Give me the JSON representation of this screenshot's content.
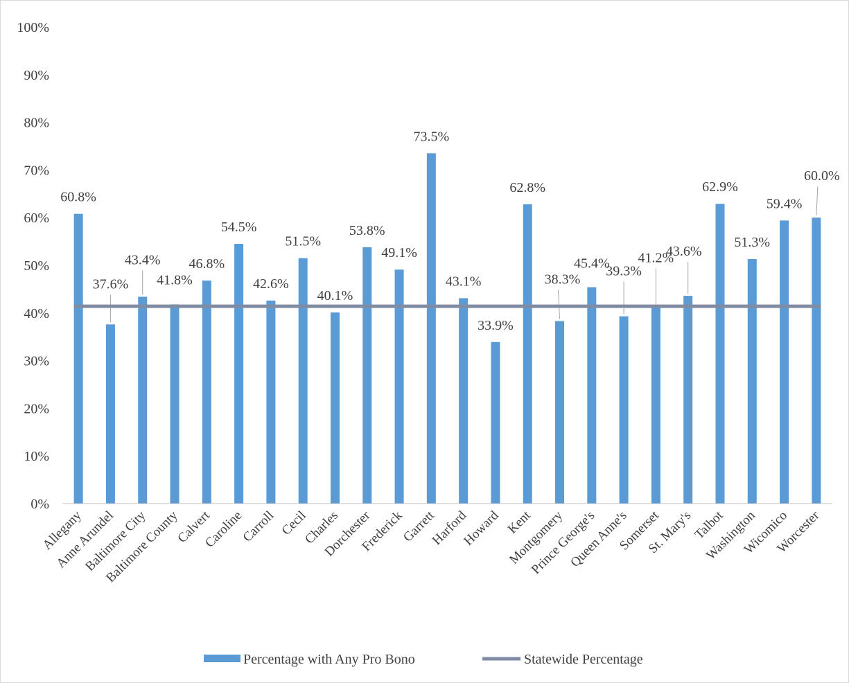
{
  "chart_data": {
    "type": "bar",
    "categories": [
      "Allegany",
      "Anne Arundel",
      "Baltimore City",
      "Baltimore County",
      "Calvert",
      "Caroline",
      "Carroll",
      "Cecil",
      "Charles",
      "Dorchester",
      "Frederick",
      "Garrett",
      "Harford",
      "Howard",
      "Kent",
      "Montgomery",
      "Prince George's",
      "Queen Anne's",
      "Somerset",
      "St. Mary's",
      "Talbot",
      "Washington",
      "Wicomico",
      "Worcester"
    ],
    "series": [
      {
        "name": "Percentage with Any Pro Bono",
        "type": "bar",
        "color": "#5b9bd5",
        "values": [
          60.8,
          37.6,
          43.4,
          41.8,
          46.8,
          54.5,
          42.6,
          51.5,
          40.1,
          53.8,
          49.1,
          73.5,
          43.1,
          33.9,
          62.8,
          38.3,
          45.4,
          39.3,
          41.2,
          43.6,
          62.9,
          51.3,
          59.4,
          60.0
        ],
        "labels": [
          "60.8%",
          "37.6%",
          "43.4%",
          "41.8%",
          "46.8%",
          "54.5%",
          "42.6%",
          "51.5%",
          "40.1%",
          "53.8%",
          "49.1%",
          "73.5%",
          "43.1%",
          "33.9%",
          "62.8%",
          "38.3%",
          "45.4%",
          "39.3%",
          "41.2%",
          "43.6%",
          "62.9%",
          "51.3%",
          "59.4%",
          "60.0%"
        ]
      },
      {
        "name": "Statewide Percentage",
        "type": "line",
        "color": "#7f8ca3",
        "value": 41.4
      }
    ],
    "y_ticks": [
      "0%",
      "10%",
      "20%",
      "30%",
      "40%",
      "50%",
      "60%",
      "70%",
      "80%",
      "90%",
      "100%"
    ],
    "ylim": [
      0,
      100
    ],
    "title": "",
    "xlabel": "",
    "ylabel": "",
    "grid": false,
    "legend_position": "bottom"
  }
}
